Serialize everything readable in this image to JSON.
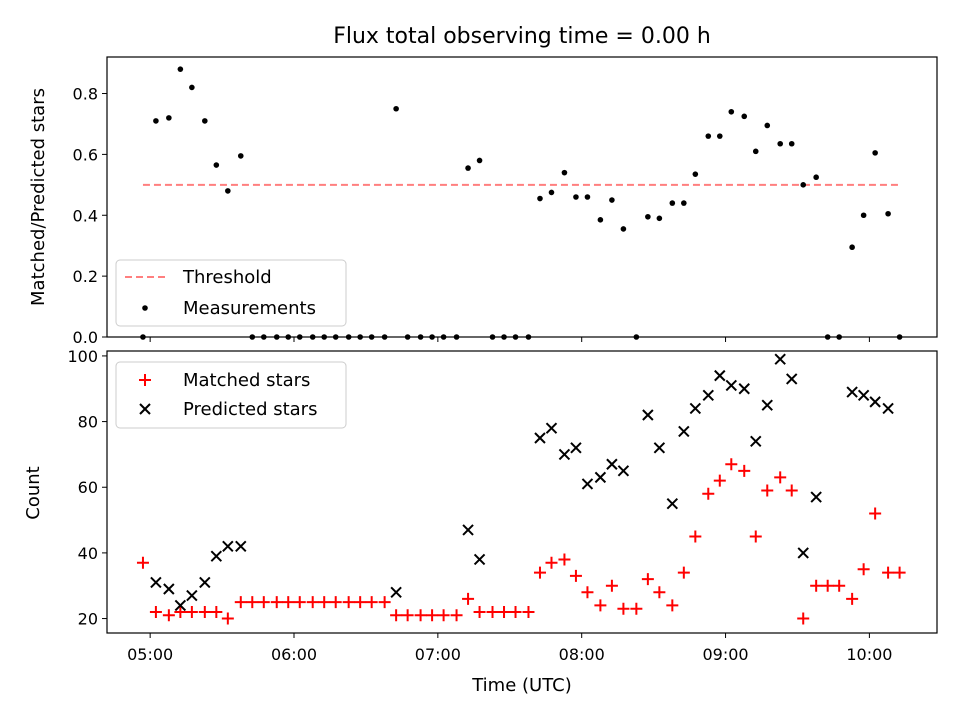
{
  "title": "Flux total observing time = 0.00 h",
  "colors": {
    "threshold": "#ff7f7f",
    "measurement": "#000000",
    "matched": "#ff0000",
    "predicted": "#000000"
  },
  "chart_data": [
    {
      "type": "scatter",
      "ylabel": "Matched/Predicted stars",
      "xlim": [
        4.7,
        10.47
      ],
      "ylim": [
        0,
        0.92
      ],
      "yticks": [
        0.0,
        0.2,
        0.4,
        0.6,
        0.8
      ],
      "ytick_labels": [
        "0.0",
        "0.2",
        "0.4",
        "0.6",
        "0.8"
      ],
      "legend": {
        "position": "lower-left",
        "entries": [
          "Threshold",
          "Measurements"
        ]
      },
      "threshold": {
        "name": "Threshold",
        "y": 0.5,
        "x": [
          4.95,
          10.22
        ]
      },
      "series": [
        {
          "name": "Measurements",
          "x": [
            4.95,
            5.04,
            5.13,
            5.21,
            5.29,
            5.38,
            5.46,
            5.54,
            5.63,
            5.71,
            5.79,
            5.88,
            5.96,
            6.04,
            6.13,
            6.21,
            6.29,
            6.38,
            6.46,
            6.54,
            6.63,
            6.71,
            6.79,
            6.88,
            6.96,
            7.04,
            7.13,
            7.21,
            7.29,
            7.38,
            7.46,
            7.54,
            7.63,
            7.71,
            7.79,
            7.88,
            7.96,
            8.04,
            8.13,
            8.21,
            8.29,
            8.38,
            8.46,
            8.54,
            8.63,
            8.71,
            8.79,
            8.88,
            8.96,
            9.04,
            9.13,
            9.21,
            9.29,
            9.38,
            9.46,
            9.54,
            9.63,
            9.71,
            9.79,
            9.88,
            9.96,
            10.04,
            10.13,
            10.21
          ],
          "y": [
            0.0,
            0.71,
            0.72,
            0.88,
            0.82,
            0.71,
            0.565,
            0.48,
            0.595,
            0.0,
            0.0,
            0.0,
            0.0,
            0.0,
            0.0,
            0.0,
            0.0,
            0.0,
            0.0,
            0.0,
            0.0,
            0.75,
            0.0,
            0.0,
            0.0,
            0.0,
            0.0,
            0.555,
            0.58,
            0.0,
            0.0,
            0.0,
            0.0,
            0.455,
            0.475,
            0.54,
            0.46,
            0.46,
            0.385,
            0.45,
            0.355,
            0.0,
            0.395,
            0.39,
            0.44,
            0.44,
            0.535,
            0.66,
            0.66,
            0.74,
            0.725,
            0.61,
            0.695,
            0.635,
            0.635,
            0.5,
            0.525,
            0.0,
            0.0,
            0.295,
            0.4,
            0.605,
            0.405,
            0.0
          ]
        }
      ]
    },
    {
      "type": "scatter",
      "xlabel": "Time (UTC)",
      "ylabel": "Count",
      "xlim": [
        4.7,
        10.47
      ],
      "ylim": [
        15.6,
        101.5
      ],
      "yticks": [
        20,
        40,
        60,
        80,
        100
      ],
      "ytick_labels": [
        "20",
        "40",
        "60",
        "80",
        "100"
      ],
      "xticks": [
        5,
        6,
        7,
        8,
        9,
        10
      ],
      "xtick_labels": [
        "05:00",
        "06:00",
        "07:00",
        "08:00",
        "09:00",
        "10:00"
      ],
      "legend": {
        "position": "top-left",
        "entries": [
          "Matched stars",
          "Predicted stars"
        ]
      },
      "series": [
        {
          "name": "Matched stars",
          "x": [
            4.95,
            5.04,
            5.13,
            5.21,
            5.29,
            5.38,
            5.46,
            5.54,
            5.63,
            5.71,
            5.79,
            5.88,
            5.96,
            6.04,
            6.13,
            6.21,
            6.29,
            6.38,
            6.46,
            6.54,
            6.63,
            6.71,
            6.79,
            6.88,
            6.96,
            7.04,
            7.13,
            7.21,
            7.29,
            7.38,
            7.46,
            7.54,
            7.63,
            7.71,
            7.79,
            7.88,
            7.96,
            8.04,
            8.13,
            8.21,
            8.29,
            8.38,
            8.46,
            8.54,
            8.63,
            8.71,
            8.79,
            8.88,
            8.96,
            9.04,
            9.13,
            9.21,
            9.29,
            9.38,
            9.46,
            9.54,
            9.63,
            9.71,
            9.79,
            9.88,
            9.96,
            10.04,
            10.13,
            10.21
          ],
          "y": [
            37,
            22,
            21,
            22,
            22,
            22,
            22,
            20,
            25,
            25,
            25,
            25,
            25,
            25,
            25,
            25,
            25,
            25,
            25,
            25,
            25,
            21,
            21,
            21,
            21,
            21,
            21,
            26,
            22,
            22,
            22,
            22,
            22,
            34,
            37,
            38,
            33,
            28,
            24,
            30,
            23,
            23,
            32,
            28,
            24,
            34,
            45,
            58,
            62,
            67,
            65,
            45,
            59,
            63,
            59,
            20,
            30,
            30,
            30,
            26,
            35,
            52,
            34,
            34
          ]
        },
        {
          "name": "Predicted stars",
          "x": [
            5.04,
            5.13,
            5.21,
            5.29,
            5.38,
            5.46,
            5.54,
            5.63,
            6.71,
            7.21,
            7.29,
            7.71,
            7.79,
            7.88,
            7.96,
            8.04,
            8.13,
            8.21,
            8.29,
            8.46,
            8.54,
            8.63,
            8.71,
            8.79,
            8.88,
            8.96,
            9.04,
            9.13,
            9.21,
            9.29,
            9.38,
            9.46,
            9.54,
            9.63,
            9.88,
            9.96,
            10.04,
            10.13
          ],
          "y": [
            31,
            29,
            24,
            27,
            31,
            39,
            42,
            42,
            28,
            47,
            38,
            75,
            78,
            70,
            72,
            61,
            63,
            67,
            65,
            82,
            72,
            55,
            77,
            84,
            88,
            94,
            91,
            90,
            74,
            85,
            99,
            93,
            40,
            57,
            89,
            88,
            86,
            84
          ]
        }
      ]
    }
  ]
}
